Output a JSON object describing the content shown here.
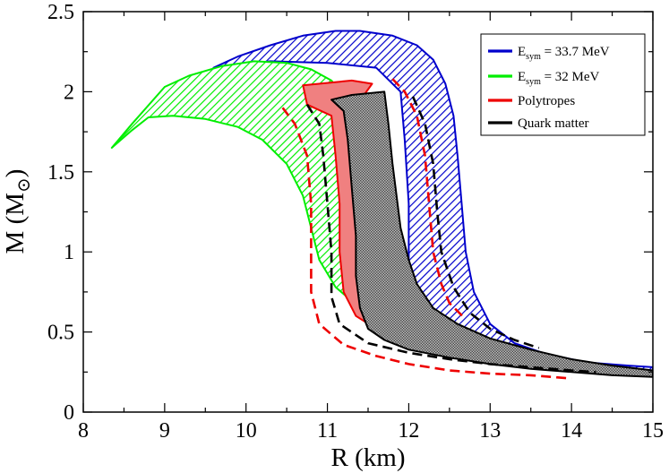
{
  "chart_data": {
    "type": "area",
    "xlabel": "R (km)",
    "ylabel_main": "M (M",
    "ylabel_symbol": "⊙",
    "ylabel_close": ")",
    "xlim": [
      8,
      15
    ],
    "ylim": [
      0,
      2.5
    ],
    "x_ticks": [
      8,
      9,
      10,
      11,
      12,
      13,
      14,
      15
    ],
    "x_tick_labels": [
      "8",
      "9",
      "10",
      "11",
      "12",
      "13",
      "14",
      "15"
    ],
    "y_ticks": [
      0,
      0.5,
      1,
      1.5,
      2,
      2.5
    ],
    "y_tick_labels": [
      "0",
      "0.5",
      "1",
      "1.5",
      "2",
      "2.5"
    ],
    "legend_position": "top-right",
    "legend": [
      {
        "name": "esym-33-7",
        "main": "E",
        "sub": "sym",
        "rest": " = 33.7 MeV",
        "color": "#0000cc"
      },
      {
        "name": "esym-32",
        "main": "E",
        "sub": "sym",
        "rest": " = 32 MeV",
        "color": "#00ee00"
      },
      {
        "name": "polytropes",
        "main": "Polytropes",
        "sub": "",
        "rest": "",
        "color": "#ee0000"
      },
      {
        "name": "quark-matter",
        "main": "Quark matter",
        "sub": "",
        "rest": "",
        "color": "#000000"
      }
    ],
    "bands": [
      {
        "name": "band-esym-33-7",
        "color": "#0000cc",
        "fill": "hatch-blue",
        "upper": [
          [
            9.6,
            2.15
          ],
          [
            9.9,
            2.22
          ],
          [
            10.3,
            2.29
          ],
          [
            10.7,
            2.35
          ],
          [
            11.1,
            2.38
          ],
          [
            11.4,
            2.38
          ],
          [
            11.8,
            2.35
          ],
          [
            12.1,
            2.29
          ],
          [
            12.3,
            2.2
          ],
          [
            12.45,
            2.05
          ],
          [
            12.55,
            1.85
          ],
          [
            12.6,
            1.6
          ],
          [
            12.65,
            1.3
          ],
          [
            12.7,
            1.0
          ],
          [
            12.8,
            0.75
          ],
          [
            13.0,
            0.55
          ],
          [
            13.3,
            0.43
          ],
          [
            13.7,
            0.36
          ],
          [
            14.2,
            0.31
          ],
          [
            14.7,
            0.29
          ],
          [
            15.0,
            0.28
          ]
        ],
        "lower": [
          [
            15.0,
            0.26
          ],
          [
            14.5,
            0.27
          ],
          [
            14.0,
            0.29
          ],
          [
            13.5,
            0.33
          ],
          [
            13.0,
            0.39
          ],
          [
            12.6,
            0.47
          ],
          [
            12.3,
            0.57
          ],
          [
            12.15,
            0.65
          ],
          [
            12.05,
            0.72
          ],
          [
            12.0,
            0.75
          ],
          [
            12.0,
            0.9
          ],
          [
            12.0,
            1.3
          ],
          [
            11.95,
            1.7
          ],
          [
            11.9,
            2.0
          ],
          [
            11.6,
            2.15
          ],
          [
            11.0,
            2.18
          ],
          [
            10.3,
            2.19
          ],
          [
            9.9,
            2.17
          ],
          [
            9.6,
            2.15
          ]
        ]
      },
      {
        "name": "band-esym-32",
        "color": "#00ee00",
        "fill": "hatch-green",
        "upper": [
          [
            8.35,
            1.65
          ],
          [
            8.6,
            1.8
          ],
          [
            9.0,
            2.03
          ],
          [
            9.3,
            2.1
          ],
          [
            9.7,
            2.16
          ],
          [
            10.1,
            2.19
          ],
          [
            10.5,
            2.18
          ],
          [
            10.8,
            2.14
          ],
          [
            11.05,
            2.07
          ],
          [
            11.2,
            1.97
          ],
          [
            11.3,
            1.85
          ],
          [
            11.35,
            1.65
          ],
          [
            11.4,
            1.4
          ],
          [
            11.45,
            1.1
          ],
          [
            11.5,
            0.9
          ],
          [
            11.55,
            0.75
          ],
          [
            11.6,
            0.62
          ]
        ],
        "lower": [
          [
            11.6,
            0.62
          ],
          [
            11.4,
            0.65
          ],
          [
            11.1,
            0.78
          ],
          [
            10.9,
            0.95
          ],
          [
            10.8,
            1.15
          ],
          [
            10.7,
            1.35
          ],
          [
            10.5,
            1.55
          ],
          [
            10.2,
            1.7
          ],
          [
            9.9,
            1.78
          ],
          [
            9.5,
            1.83
          ],
          [
            9.1,
            1.85
          ],
          [
            8.8,
            1.84
          ],
          [
            8.6,
            1.76
          ],
          [
            8.35,
            1.65
          ]
        ]
      },
      {
        "name": "band-polytropes",
        "color": "#ee0000",
        "fill": "#f08080",
        "upper": [
          [
            10.7,
            2.04
          ],
          [
            11.3,
            2.07
          ],
          [
            11.55,
            2.05
          ],
          [
            11.45,
            1.98
          ],
          [
            11.25,
            1.95
          ],
          [
            11.3,
            1.8
          ],
          [
            11.35,
            1.55
          ],
          [
            11.4,
            1.3
          ],
          [
            11.45,
            1.05
          ],
          [
            11.5,
            0.85
          ],
          [
            11.6,
            0.7
          ],
          [
            11.8,
            0.62
          ],
          [
            12.1,
            0.55
          ],
          [
            12.5,
            0.48
          ]
        ],
        "lower": [
          [
            12.5,
            0.48
          ],
          [
            12.0,
            0.47
          ],
          [
            11.6,
            0.52
          ],
          [
            11.35,
            0.6
          ],
          [
            11.2,
            0.75
          ],
          [
            11.15,
            1.0
          ],
          [
            11.15,
            1.3
          ],
          [
            11.1,
            1.6
          ],
          [
            11.05,
            1.85
          ],
          [
            10.75,
            1.92
          ],
          [
            10.7,
            2.04
          ]
        ]
      },
      {
        "name": "band-quark-matter",
        "color": "#000000",
        "fill": "hatch-black",
        "upper": [
          [
            11.05,
            1.95
          ],
          [
            11.3,
            1.98
          ],
          [
            11.7,
            2.0
          ],
          [
            11.75,
            1.8
          ],
          [
            11.8,
            1.55
          ],
          [
            11.85,
            1.35
          ],
          [
            11.9,
            1.15
          ],
          [
            12.0,
            0.95
          ],
          [
            12.1,
            0.8
          ],
          [
            12.3,
            0.65
          ],
          [
            12.6,
            0.55
          ],
          [
            13.0,
            0.46
          ],
          [
            13.5,
            0.39
          ],
          [
            14.0,
            0.33
          ],
          [
            14.5,
            0.29
          ],
          [
            15.0,
            0.26
          ]
        ],
        "lower": [
          [
            15.0,
            0.22
          ],
          [
            14.5,
            0.23
          ],
          [
            14.0,
            0.25
          ],
          [
            13.5,
            0.27
          ],
          [
            13.0,
            0.3
          ],
          [
            12.5,
            0.34
          ],
          [
            12.0,
            0.39
          ],
          [
            11.7,
            0.45
          ],
          [
            11.5,
            0.52
          ],
          [
            11.4,
            0.65
          ],
          [
            11.35,
            0.85
          ],
          [
            11.35,
            1.1
          ],
          [
            11.3,
            1.4
          ],
          [
            11.25,
            1.7
          ],
          [
            11.2,
            1.88
          ],
          [
            11.05,
            1.95
          ]
        ]
      }
    ],
    "dashed_lines": [
      {
        "name": "dashed-red-left",
        "color": "#ee0000",
        "points": [
          [
            10.45,
            1.9
          ],
          [
            10.6,
            1.8
          ],
          [
            10.75,
            1.6
          ],
          [
            10.8,
            1.3
          ],
          [
            10.8,
            1.0
          ],
          [
            10.8,
            0.75
          ],
          [
            10.9,
            0.55
          ],
          [
            11.2,
            0.42
          ],
          [
            11.6,
            0.35
          ],
          [
            12.0,
            0.3
          ],
          [
            12.5,
            0.26
          ],
          [
            13.0,
            0.24
          ],
          [
            13.5,
            0.23
          ],
          [
            14.0,
            0.21
          ]
        ]
      },
      {
        "name": "dashed-black-left",
        "color": "#000000",
        "points": [
          [
            10.75,
            1.92
          ],
          [
            10.9,
            1.8
          ],
          [
            10.95,
            1.6
          ],
          [
            11.0,
            1.3
          ],
          [
            11.05,
            1.0
          ],
          [
            11.05,
            0.72
          ],
          [
            11.15,
            0.55
          ],
          [
            11.5,
            0.43
          ],
          [
            12.0,
            0.37
          ],
          [
            12.5,
            0.33
          ],
          [
            13.0,
            0.3
          ],
          [
            13.5,
            0.28
          ],
          [
            14.0,
            0.26
          ],
          [
            14.3,
            0.25
          ]
        ]
      },
      {
        "name": "dashed-red-right",
        "color": "#ee0000",
        "points": [
          [
            11.8,
            2.08
          ],
          [
            11.95,
            2.0
          ],
          [
            12.1,
            1.85
          ],
          [
            12.2,
            1.6
          ],
          [
            12.25,
            1.3
          ],
          [
            12.3,
            1.0
          ],
          [
            12.4,
            0.8
          ],
          [
            12.5,
            0.68
          ],
          [
            12.7,
            0.58
          ]
        ]
      },
      {
        "name": "dashed-black-right",
        "color": "#000000",
        "points": [
          [
            12.05,
            1.97
          ],
          [
            12.2,
            1.8
          ],
          [
            12.3,
            1.55
          ],
          [
            12.35,
            1.25
          ],
          [
            12.4,
            1.0
          ],
          [
            12.55,
            0.78
          ],
          [
            12.75,
            0.62
          ],
          [
            13.0,
            0.52
          ],
          [
            13.3,
            0.45
          ],
          [
            13.6,
            0.4
          ]
        ]
      }
    ]
  }
}
